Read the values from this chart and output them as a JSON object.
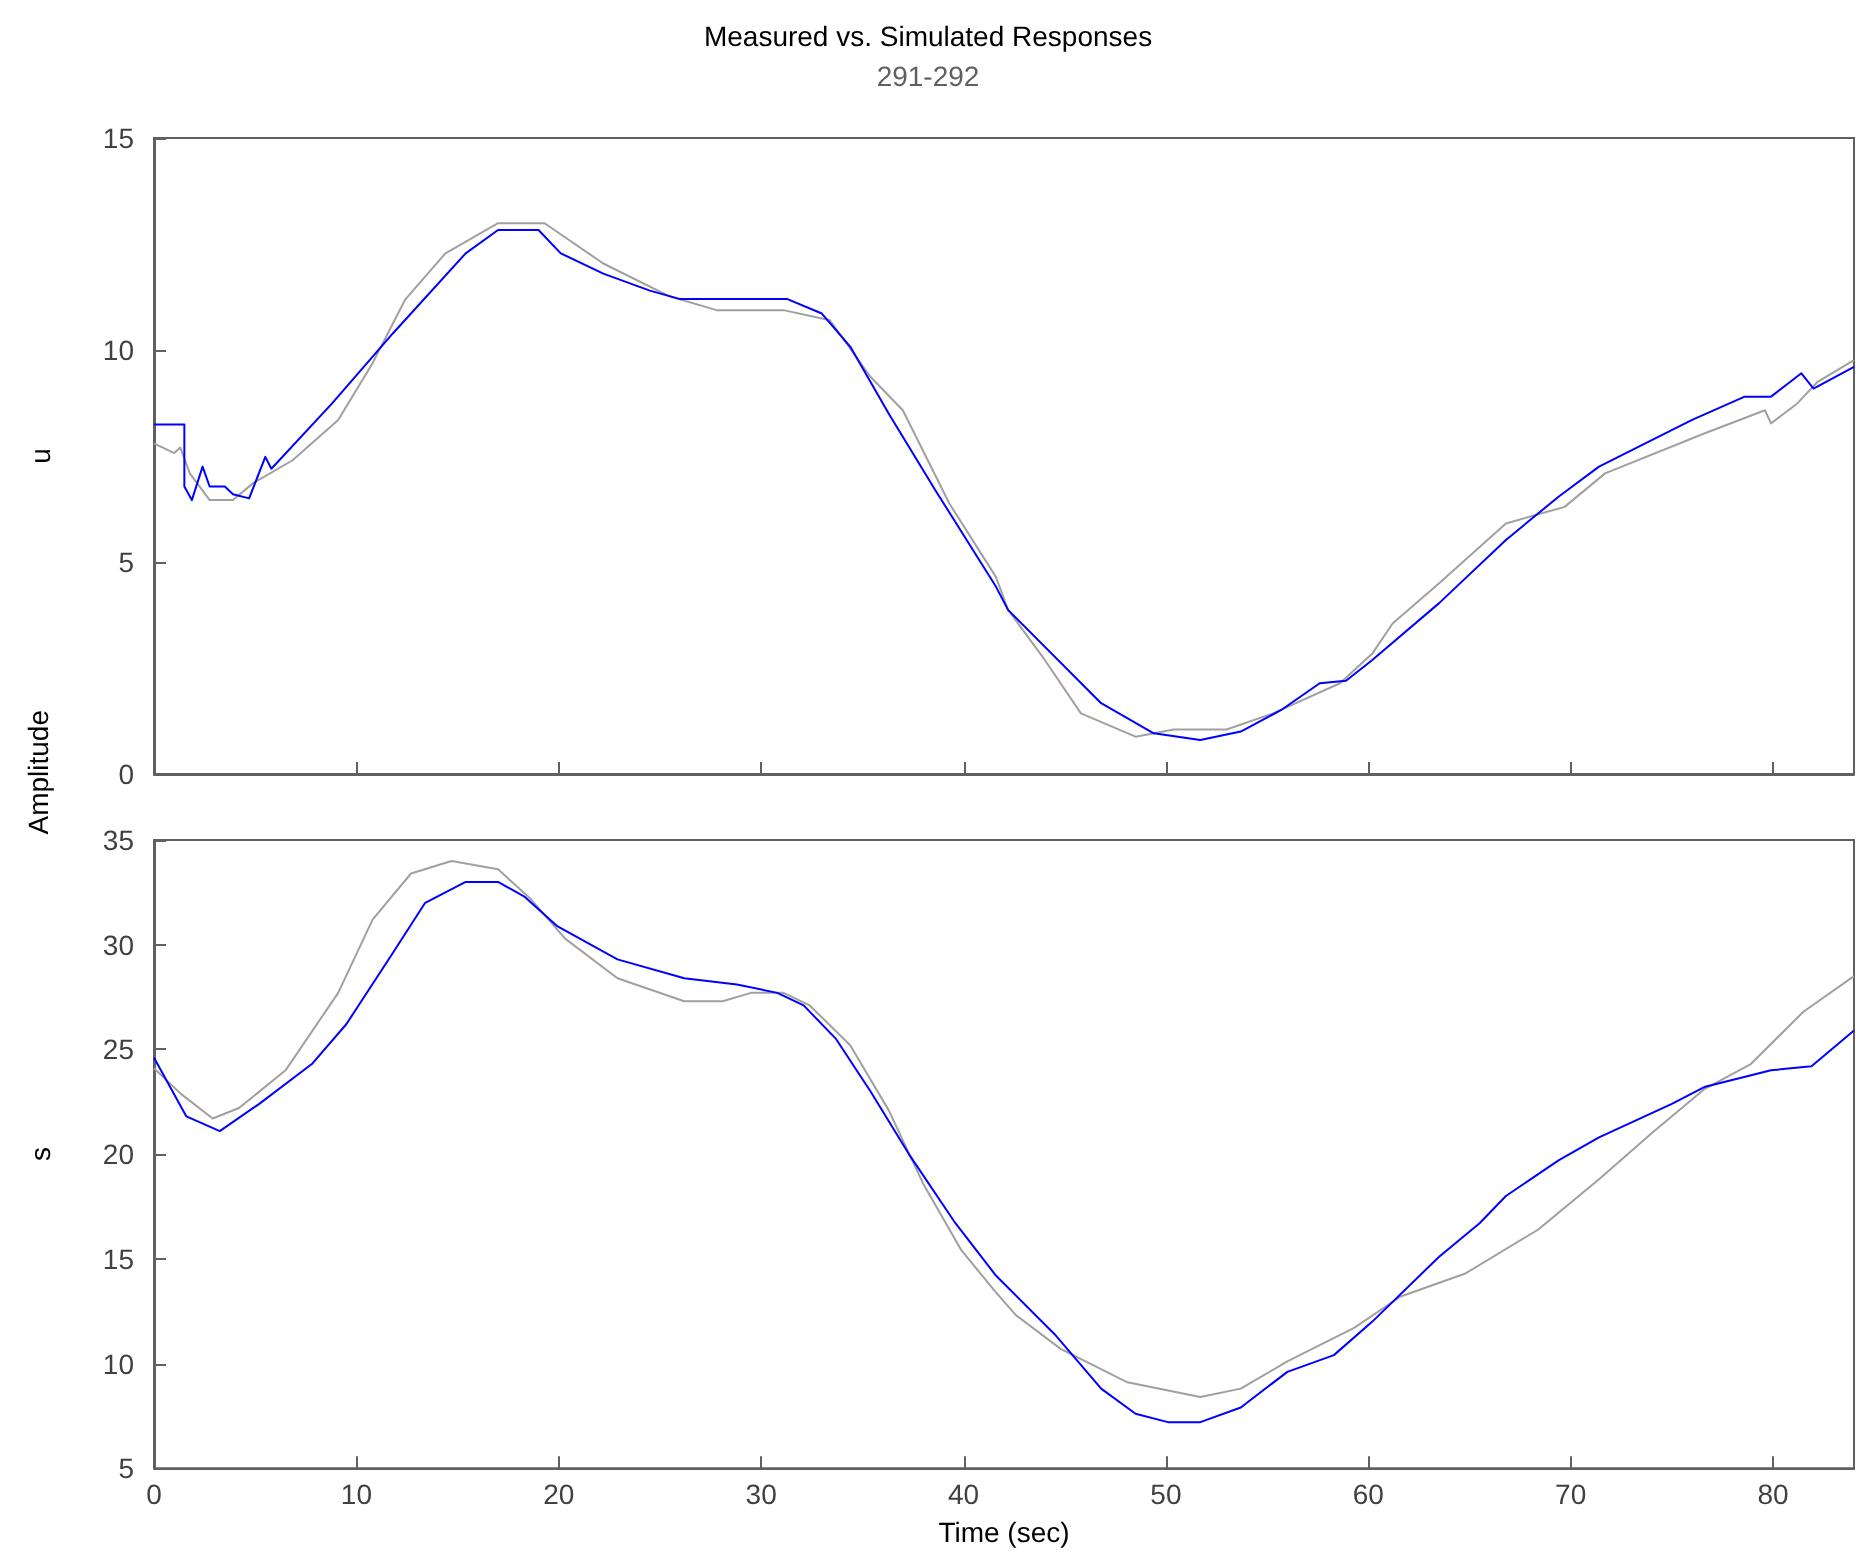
{
  "chart_data": [
    {
      "type": "line",
      "title": "Measured vs. Simulated Responses",
      "subtitle": "291-292",
      "ylabel": "u",
      "annotations": [
        "Amplitude"
      ],
      "xlim": [
        0,
        84
      ],
      "xticks": [
        0,
        10,
        20,
        30,
        40,
        50,
        60,
        70,
        80
      ],
      "ylim": [
        0,
        15
      ],
      "yticks": [
        0,
        5,
        10,
        15
      ],
      "tick_labels": "y",
      "marker": "none",
      "line_style": "solid",
      "series": [
        {
          "color": "#a0a0a0",
          "x": [
            0,
            1.0,
            1.3,
            1.77,
            2.75,
            3.9,
            4.9,
            6.85,
            9.1,
            10.8,
            12.4,
            14.4,
            17,
            19.3,
            22.2,
            25.5,
            27.8,
            31.1,
            33.4,
            35.4,
            37.0,
            39.3,
            41.6,
            42.2,
            43.9,
            45.8,
            48.5,
            50.4,
            53,
            55.3,
            58.6,
            60.2,
            61.2,
            63.5,
            66.8,
            69.7,
            71.7,
            76.6,
            79.6,
            79.9,
            81.2,
            82.2,
            84
          ],
          "values": [
            7.8,
            7.57,
            7.7,
            7.09,
            6.46,
            6.46,
            6.86,
            7.4,
            8.35,
            9.69,
            11.18,
            12.28,
            12.99,
            12.99,
            12.04,
            11.26,
            10.94,
            10.94,
            10.7,
            9.37,
            8.58,
            6.38,
            4.65,
            3.87,
            2.77,
            1.43,
            0.88,
            1.05,
            1.05,
            1.43,
            2.14,
            2.84,
            3.55,
            4.5,
            5.91,
            6.3,
            7.09,
            8.03,
            8.58,
            8.27,
            8.74,
            9.25,
            9.76
          ]
        },
        {
          "color": "#0000ff",
          "x": [
            0,
            1.5,
            1.5,
            1.87,
            2.4,
            2.75,
            3.5,
            3.9,
            4.7,
            5.5,
            5.8,
            8.8,
            11.8,
            15.4,
            17,
            19.0,
            20.1,
            22.2,
            24.5,
            26,
            31.3,
            33,
            34.4,
            36.3,
            38.6,
            41.6,
            42.2,
            46.8,
            49.4,
            51.7,
            53.7,
            55.7,
            57.6,
            58.9,
            60.2,
            63.5,
            66.8,
            69.4,
            71.4,
            76.0,
            78.6,
            79.9,
            81.4,
            82.0,
            84
          ],
          "values": [
            8.24,
            8.24,
            6.78,
            6.46,
            7.25,
            6.78,
            6.78,
            6.6,
            6.5,
            7.48,
            7.2,
            8.74,
            10.39,
            12.28,
            12.83,
            12.83,
            12.28,
            11.8,
            11.4,
            11.2,
            11.2,
            10.86,
            10.08,
            8.5,
            6.7,
            4.42,
            3.87,
            1.67,
            0.96,
            0.8,
            1.0,
            1.51,
            2.14,
            2.2,
            2.69,
            4.03,
            5.52,
            6.54,
            7.25,
            8.35,
            8.9,
            8.9,
            9.45,
            9.09,
            9.6
          ]
        }
      ]
    },
    {
      "type": "line",
      "xlabel": "Time (sec)",
      "ylabel": "s",
      "xlim": [
        0,
        84
      ],
      "xticks": [
        0,
        10,
        20,
        30,
        40,
        50,
        60,
        70,
        80
      ],
      "ylim": [
        5,
        35
      ],
      "yticks": [
        5,
        10,
        15,
        20,
        25,
        30,
        35
      ],
      "marker": "none",
      "line_style": "solid",
      "series": [
        {
          "color": "#a0a0a0",
          "x": [
            0,
            1.3,
            2.9,
            4.2,
            6.5,
            9.1,
            10.8,
            12.7,
            14.7,
            17,
            18.6,
            20.3,
            22.9,
            26.2,
            28.1,
            29.5,
            31.1,
            32.4,
            34.4,
            36.3,
            38.0,
            39.9,
            41.6,
            42.6,
            44.8,
            48.1,
            51.7,
            53.7,
            56,
            59.3,
            61.6,
            64.8,
            68.4,
            71.4,
            74,
            76.6,
            78.9,
            81.5,
            84
          ],
          "values": [
            24.1,
            22.9,
            21.7,
            22.2,
            24.0,
            27.7,
            31.2,
            33.4,
            34.0,
            33.6,
            32.2,
            30.3,
            28.4,
            27.3,
            27.3,
            27.7,
            27.7,
            27.1,
            25.2,
            22.1,
            18.6,
            15.4,
            13.4,
            12.3,
            10.7,
            9.1,
            8.4,
            8.8,
            10.1,
            11.7,
            13.2,
            14.3,
            16.4,
            18.8,
            21.0,
            23.1,
            24.3,
            26.8,
            28.5
          ]
        },
        {
          "color": "#0000ff",
          "x": [
            0,
            1.6,
            3.25,
            5.2,
            7.8,
            9.5,
            11.8,
            13.4,
            15.4,
            17,
            18.3,
            19.9,
            22.9,
            26.2,
            28.8,
            30.8,
            32.1,
            33.7,
            35.4,
            37.3,
            39.6,
            41.6,
            44.5,
            46.8,
            48.5,
            50.1,
            51.7,
            53.7,
            56,
            58.3,
            60.2,
            63.5,
            65.5,
            66.8,
            69.4,
            71.4,
            75,
            76.6,
            79.9,
            81.9,
            84
          ],
          "values": [
            24.6,
            21.8,
            21.1,
            22.4,
            24.3,
            26.2,
            29.6,
            32.0,
            33.0,
            33.0,
            32.3,
            30.9,
            29.3,
            28.4,
            28.1,
            27.7,
            27.1,
            25.5,
            23.0,
            20.0,
            16.7,
            14.2,
            11.4,
            8.8,
            7.6,
            7.2,
            7.2,
            7.9,
            9.6,
            10.4,
            12.0,
            15.1,
            16.7,
            18.0,
            19.7,
            20.8,
            22.4,
            23.2,
            24.0,
            24.2,
            25.9
          ]
        }
      ]
    }
  ]
}
